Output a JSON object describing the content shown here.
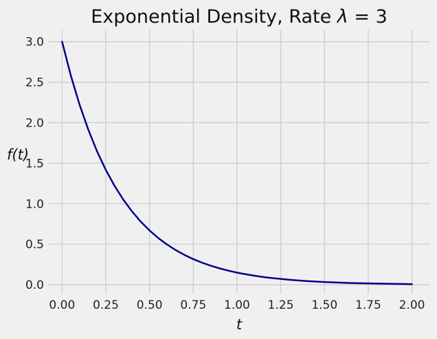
{
  "chart_data": {
    "type": "line",
    "title": "Exponential Density, Rate λ = 3",
    "title_main": "Exponential Density, Rate ",
    "title_lambda": "λ",
    "title_rest": " = 3",
    "xlabel": "t",
    "ylabel": "f(t)",
    "xlim": [
      -0.08,
      2.1
    ],
    "ylim": [
      -0.11,
      3.15
    ],
    "x_ticks": [
      "0.00",
      "0.25",
      "0.50",
      "0.75",
      "1.00",
      "1.25",
      "1.50",
      "1.75",
      "2.00"
    ],
    "y_ticks": [
      "0.0",
      "0.5",
      "1.0",
      "1.5",
      "2.0",
      "2.5",
      "3.0"
    ],
    "grid": true,
    "series": [
      {
        "color": "#00008b",
        "x": [
          0.0,
          0.05,
          0.1,
          0.15,
          0.2,
          0.25,
          0.3,
          0.35,
          0.4,
          0.45,
          0.5,
          0.55,
          0.6,
          0.65,
          0.7,
          0.75,
          0.8,
          0.85,
          0.9,
          0.95,
          1.0,
          1.05,
          1.1,
          1.15,
          1.2,
          1.25,
          1.3,
          1.35,
          1.4,
          1.45,
          1.5,
          1.55,
          1.6,
          1.65,
          1.7,
          1.75,
          1.8,
          1.85,
          1.9,
          1.95,
          2.0
        ],
        "y": [
          3.0,
          2.582,
          2.222,
          1.913,
          1.646,
          1.417,
          1.22,
          1.05,
          0.904,
          0.778,
          0.669,
          0.576,
          0.496,
          0.427,
          0.367,
          0.316,
          0.272,
          0.234,
          0.202,
          0.174,
          0.149,
          0.129,
          0.111,
          0.095,
          0.082,
          0.071,
          0.061,
          0.052,
          0.045,
          0.039,
          0.033,
          0.029,
          0.025,
          0.021,
          0.018,
          0.016,
          0.014,
          0.012,
          0.01,
          0.009,
          0.007
        ]
      }
    ]
  },
  "colors": {
    "background": "#f0f0f0",
    "grid": "#cbcbcb",
    "line": "#00008b"
  }
}
